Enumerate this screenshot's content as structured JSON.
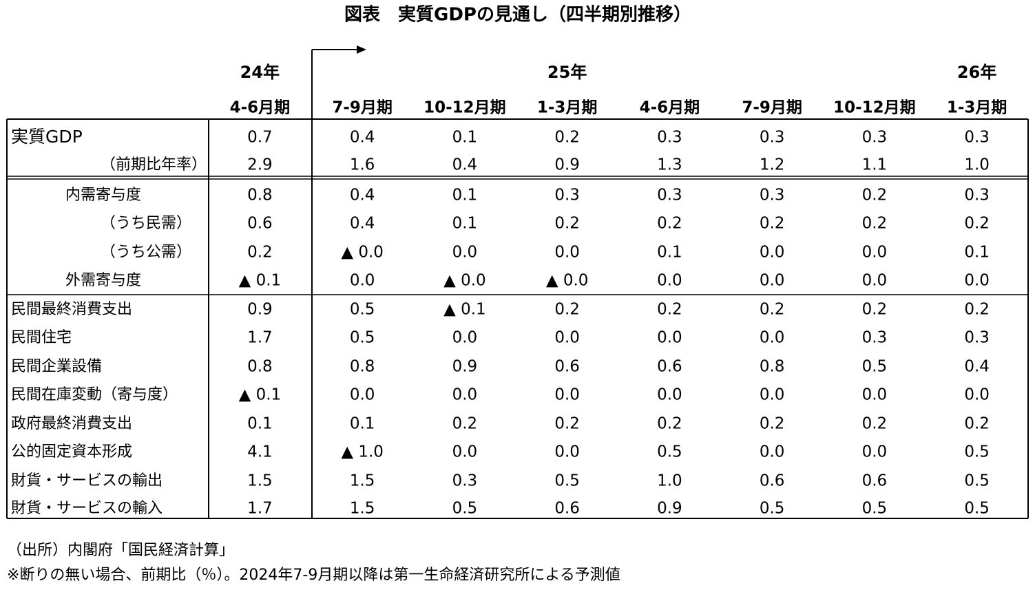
{
  "title": "図表　実質GDPの見通し（四半期別推移）",
  "years": [
    "24年",
    "25年",
    "26年"
  ],
  "quarters": [
    "4-6月期",
    "7-9月期",
    "10-12月期",
    "1-3月期",
    "4-6月期",
    "7-9月期",
    "10-12月期",
    "1-3月期"
  ],
  "rows": [
    {
      "label": "実質GDP",
      "values": [
        "0.7",
        "0.4",
        "0.1",
        "0.2",
        "0.3",
        "0.3",
        "0.3",
        "0.3"
      ]
    },
    {
      "label": "（前期比年率）",
      "values": [
        "2.9",
        "1.6",
        "0.4",
        "0.9",
        "1.3",
        "1.2",
        "1.1",
        "1.0"
      ]
    },
    {
      "label": "内需寄与度",
      "values": [
        "0.8",
        "0.4",
        "0.1",
        "0.3",
        "0.3",
        "0.3",
        "0.2",
        "0.3"
      ]
    },
    {
      "label": "（うち民需）",
      "values": [
        "0.6",
        "0.4",
        "0.1",
        "0.2",
        "0.2",
        "0.2",
        "0.2",
        "0.2"
      ]
    },
    {
      "label": "（うち公需）",
      "values": [
        "0.2",
        "▲ 0.0",
        "0.0",
        "0.0",
        "0.1",
        "0.0",
        "0.0",
        "0.1"
      ]
    },
    {
      "label": "外需寄与度",
      "values": [
        "▲ 0.1",
        "0.0",
        "▲ 0.0",
        "▲ 0.0",
        "0.0",
        "0.0",
        "0.0",
        "0.0"
      ]
    },
    {
      "label": "民間最終消費支出",
      "values": [
        "0.9",
        "0.5",
        "▲ 0.1",
        "0.2",
        "0.2",
        "0.2",
        "0.2",
        "0.2"
      ]
    },
    {
      "label": "民間住宅",
      "values": [
        "1.7",
        "0.5",
        "0.0",
        "0.0",
        "0.0",
        "0.0",
        "0.3",
        "0.3"
      ]
    },
    {
      "label": "民間企業設備",
      "values": [
        "0.8",
        "0.8",
        "0.9",
        "0.6",
        "0.6",
        "0.8",
        "0.5",
        "0.4"
      ]
    },
    {
      "label": "民間在庫変動（寄与度）",
      "values": [
        "▲ 0.1",
        "0.0",
        "0.0",
        "0.0",
        "0.0",
        "0.0",
        "0.0",
        "0.0"
      ]
    },
    {
      "label": "政府最終消費支出",
      "values": [
        "0.1",
        "0.1",
        "0.2",
        "0.2",
        "0.2",
        "0.2",
        "0.2",
        "0.2"
      ]
    },
    {
      "label": "公的固定資本形成",
      "values": [
        "4.1",
        "▲ 1.0",
        "0.0",
        "0.0",
        "0.5",
        "0.0",
        "0.0",
        "0.5"
      ]
    },
    {
      "label": "財貨・サービスの輸出",
      "values": [
        "1.5",
        "1.5",
        "0.3",
        "0.5",
        "1.0",
        "0.6",
        "0.6",
        "0.5"
      ]
    },
    {
      "label": "財貨・サービスの輸入",
      "values": [
        "1.7",
        "1.5",
        "0.5",
        "0.6",
        "0.9",
        "0.5",
        "0.5",
        "0.5"
      ]
    }
  ],
  "notes": [
    "（出所）内閣府「国民経済計算」",
    "※断りの無い場合、前期比（％）。2024年7-9月期以降は第一生命経済研究所による予測値"
  ]
}
